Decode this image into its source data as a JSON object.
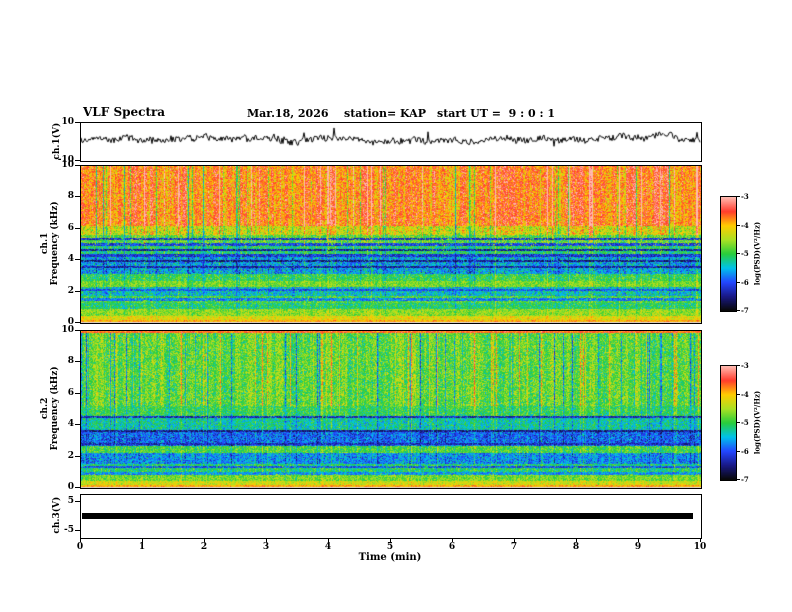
{
  "header": {
    "title": "VLF Spectra",
    "date": "Mar.18, 2026",
    "station": "station= KAP",
    "start_ut": "start UT =  9 : 0 : 1"
  },
  "xaxis": {
    "label": "Time (min)",
    "range": [
      0,
      10
    ],
    "ticks": [
      0,
      1,
      2,
      3,
      4,
      5,
      6,
      7,
      8,
      9,
      10
    ]
  },
  "colorbar": {
    "label": "log(PSD)(V²/Hz)",
    "range": [
      -7,
      -3
    ],
    "ticks": [
      -3,
      -4,
      -5,
      -6,
      -7
    ]
  },
  "panels": {
    "ch1_wave": {
      "ylabel": "ch.1(V)",
      "ylim": [
        -10,
        10
      ],
      "yticks": [
        10,
        -10
      ]
    },
    "ch1_spec": {
      "ylabel_line1": "ch.1",
      "ylabel_line2": "Frequency (kHz)",
      "ylim": [
        0,
        10
      ],
      "yticks": [
        0,
        2,
        4,
        6,
        8,
        10
      ]
    },
    "ch2_spec": {
      "ylabel_line1": "ch.2",
      "ylabel_line2": "Frequency (kHz)",
      "ylim": [
        0,
        10
      ],
      "yticks": [
        0,
        2,
        4,
        6,
        8,
        10
      ]
    },
    "ch3_wave": {
      "ylabel": "ch.3(V)",
      "ylim": [
        -7.3,
        7.3
      ],
      "yticks": [
        5,
        -5
      ]
    }
  },
  "chart_data": [
    {
      "type": "line",
      "panel": "ch1-waveform",
      "ylabel": "ch.1(V)",
      "ylim": [
        -10,
        10
      ],
      "x_range_min": [
        0,
        10
      ],
      "mean_v": 1.5,
      "description": "Continuous noisy black voltage trace fluctuating around +1.5 V with excursions between roughly -6 and +8 V"
    },
    {
      "type": "heatmap",
      "panel": "ch1-spectrogram",
      "ylabel": "ch.1 Frequency (kHz)",
      "x_range_min": [
        0,
        10
      ],
      "y_range_khz": [
        0,
        10
      ],
      "z_log_psd_range": [
        -7,
        -3
      ],
      "bands": [
        [
          0,
          0.18,
          -3.9,
          0.25,
          0.1
        ],
        [
          0.18,
          0.45,
          -4.2,
          0.3,
          0.15
        ],
        [
          0.45,
          0.9,
          -4.6,
          0.35,
          0.2
        ],
        [
          0.9,
          1.3,
          -5.1,
          0.4,
          0.25
        ],
        [
          1.3,
          1.7,
          -4.9,
          0.4,
          0.25
        ],
        [
          1.7,
          2.3,
          -5.4,
          0.45,
          0.3
        ],
        [
          2.3,
          2.7,
          -4.7,
          0.35,
          0.3
        ],
        [
          2.7,
          3.1,
          -5.0,
          0.4,
          0.3
        ],
        [
          3.1,
          4.3,
          -5.6,
          0.5,
          0.35
        ],
        [
          4.3,
          4.9,
          -5.1,
          0.4,
          0.4
        ],
        [
          4.9,
          5.6,
          -4.8,
          0.45,
          0.5
        ],
        [
          5.6,
          6.2,
          -4.3,
          0.5,
          0.8
        ],
        [
          6.2,
          10.01,
          -3.7,
          0.45,
          1.0
        ]
      ],
      "dark_lines_khz": [
        [
          5.35,
          -6.2
        ],
        [
          5.0,
          -6.1
        ],
        [
          4.65,
          -6.4
        ],
        [
          4.3,
          -6.2
        ],
        [
          3.95,
          -6.5
        ],
        [
          3.55,
          -6.4
        ],
        [
          2.1,
          -6.0
        ],
        [
          1.5,
          -5.8
        ]
      ],
      "features": "Intense red band above ~6 kHz with dense vertical streaks; green/cyan mid band with narrow dark horizontal interference lines; yellow-green band near 2.5 kHz; orange/red band below 0.5 kHz"
    },
    {
      "type": "heatmap",
      "panel": "ch2-spectrogram",
      "ylabel": "ch.2 Frequency (kHz)",
      "x_range_min": [
        0,
        10
      ],
      "y_range_khz": [
        0,
        10
      ],
      "z_log_psd_range": [
        -7,
        -3
      ],
      "bands": [
        [
          0,
          0.18,
          -3.9,
          0.25,
          0.1
        ],
        [
          0.18,
          0.45,
          -4.3,
          0.3,
          0.15
        ],
        [
          0.45,
          0.9,
          -4.7,
          0.35,
          0.2
        ],
        [
          0.9,
          1.5,
          -5.1,
          0.4,
          0.25
        ],
        [
          1.5,
          2.25,
          -5.7,
          0.45,
          0.3
        ],
        [
          2.25,
          2.7,
          -4.9,
          0.4,
          0.3
        ],
        [
          2.7,
          3.7,
          -5.9,
          0.45,
          0.3
        ],
        [
          3.7,
          4.6,
          -5.3,
          0.4,
          0.35
        ],
        [
          4.6,
          5.2,
          -5.0,
          0.4,
          0.4
        ],
        [
          5.2,
          9.85,
          -4.8,
          0.45,
          0.7
        ],
        [
          9.85,
          10.01,
          -3.6,
          0.3,
          0.2
        ]
      ],
      "dark_lines_khz": [
        [
          4.5,
          -6.3
        ],
        [
          3.65,
          -6.5
        ],
        [
          2.8,
          -6.3
        ],
        [
          1.35,
          -6.0
        ],
        [
          0.92,
          -5.7
        ]
      ],
      "features": "Green field with yellow vertical streaks above ~5 kHz; cyan/blue band 2.7-3.7 kHz; green-yellow band near 2.5 kHz; cyan band 1.5-2.25 kHz; orange/red band below 0.5 kHz"
    },
    {
      "type": "line",
      "panel": "ch3-waveform",
      "ylabel": "ch.3(V)",
      "ylim": [
        -7.3,
        7.3
      ],
      "value_v": 0,
      "x_span_min": [
        0,
        9.85
      ],
      "description": "Flat saturated thick black bar at 0 V spanning nearly the full record"
    }
  ]
}
